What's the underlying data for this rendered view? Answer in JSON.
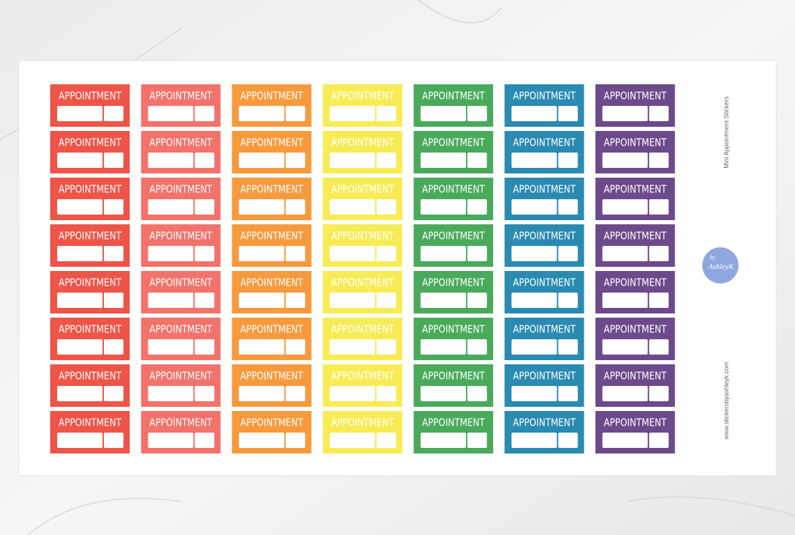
{
  "sheet": {
    "title": "Mini Appointment Stickers",
    "website": "www.stickersbyashleyk.com",
    "logo": {
      "small": "by",
      "name": "AshleyK"
    },
    "columns": [
      {
        "color": "#ee5548",
        "stickers": [
          "APPOINTMENT",
          "APPOINTMENT",
          "APPOINTMENT",
          "APPOINTMENT",
          "APPOINTMENT",
          "APPOINTMENT",
          "APPOINTMENT",
          "APPOINTMENT"
        ]
      },
      {
        "color": "#f2736b",
        "stickers": [
          "APPOINTMENT",
          "APPOINTMENT",
          "APPOINTMENT",
          "APPOINTMENT",
          "APPOINTMENT",
          "APPOINTMENT",
          "APPOINTMENT",
          "APPOINTMENT"
        ]
      },
      {
        "color": "#f79a3e",
        "stickers": [
          "APPOINTMENT",
          "APPOINTMENT",
          "APPOINTMENT",
          "APPOINTMENT",
          "APPOINTMENT",
          "APPOINTMENT",
          "APPOINTMENT",
          "APPOINTMENT"
        ]
      },
      {
        "color": "#f7ec55",
        "stickers": [
          "APPOINTMENT",
          "APPOINTMENT",
          "APPOINTMENT",
          "APPOINTMENT",
          "APPOINTMENT",
          "APPOINTMENT",
          "APPOINTMENT",
          "APPOINTMENT"
        ]
      },
      {
        "color": "#4aaa5c",
        "stickers": [
          "APPOINTMENT",
          "APPOINTMENT",
          "APPOINTMENT",
          "APPOINTMENT",
          "APPOINTMENT",
          "APPOINTMENT",
          "APPOINTMENT",
          "APPOINTMENT"
        ]
      },
      {
        "color": "#2a8ab2",
        "stickers": [
          "APPOINTMENT",
          "APPOINTMENT",
          "APPOINTMENT",
          "APPOINTMENT",
          "APPOINTMENT",
          "APPOINTMENT",
          "APPOINTMENT",
          "APPOINTMENT"
        ]
      },
      {
        "color": "#6d4a8b",
        "stickers": [
          "APPOINTMENT",
          "APPOINTMENT",
          "APPOINTMENT",
          "APPOINTMENT",
          "APPOINTMENT",
          "APPOINTMENT",
          "APPOINTMENT",
          "APPOINTMENT"
        ]
      }
    ]
  }
}
